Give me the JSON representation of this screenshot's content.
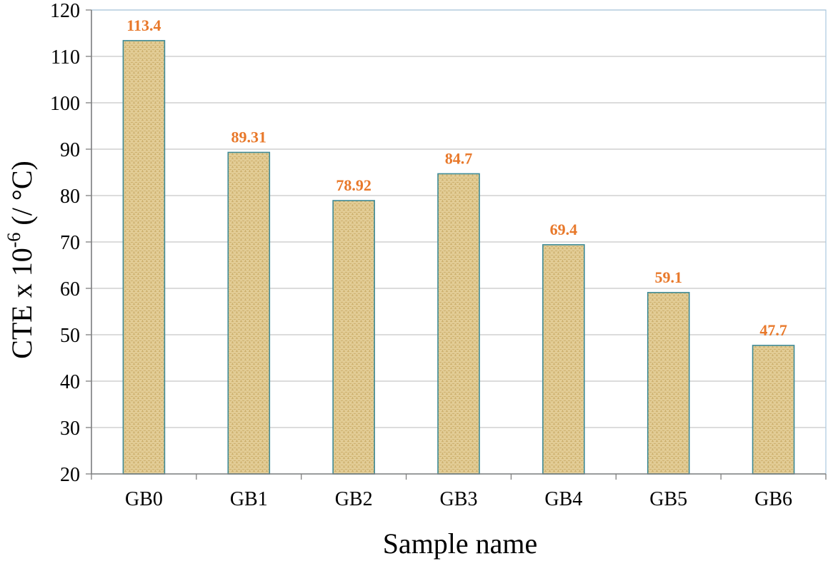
{
  "chart_data": {
    "type": "bar",
    "categories": [
      "GB0",
      "GB1",
      "GB2",
      "GB3",
      "GB4",
      "GB5",
      "GB6"
    ],
    "values": [
      113.4,
      89.31,
      78.92,
      84.7,
      69.4,
      59.1,
      47.7
    ],
    "data_labels": [
      "113.4",
      "89.31",
      "78.92",
      "84.7",
      "69.4",
      "59.1",
      "47.7"
    ],
    "title": "",
    "xlabel": "Sample name",
    "ylabel": {
      "prefix": "CTE x 10",
      "superscript": "-6",
      "suffix": " (/ °C)"
    },
    "ylim": [
      20,
      120
    ],
    "yticks": [
      20,
      30,
      40,
      50,
      60,
      70,
      80,
      90,
      100,
      110,
      120
    ],
    "grid": true,
    "legend": "none",
    "colors": {
      "bar_fill": "#e2cc95",
      "bar_fill_dark": "#cdb06e",
      "bar_edge": "#3e8a96",
      "data_label": "#e8782a",
      "grid": "#c8c8c8",
      "plot_border": "#a9c7de",
      "axis": "#7f7f7f",
      "text": "#000000"
    }
  }
}
